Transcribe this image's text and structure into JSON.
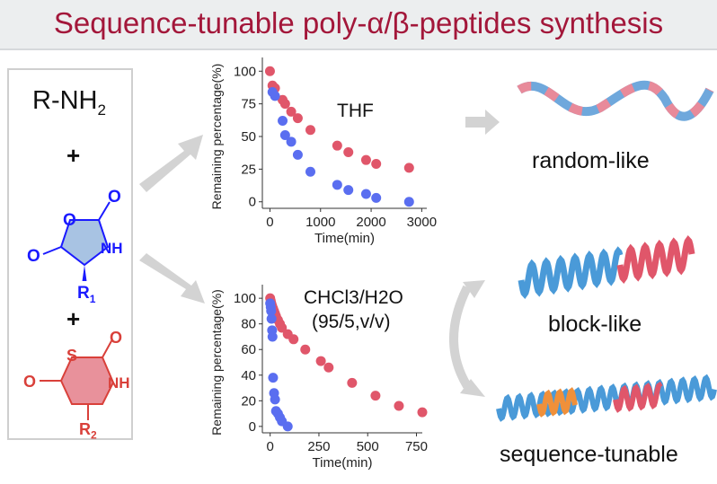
{
  "title": "Sequence-tunable poly-α/β-peptides synthesis",
  "reagents": {
    "amine": "R-NH",
    "amine_sub": "2",
    "plus": "+",
    "nca": {
      "o1": "O",
      "o2": "O",
      "o3": "O",
      "nh": "NH",
      "r": "R",
      "r_sub": "1",
      "color": "#1a1aff"
    },
    "ntca": {
      "s": "S",
      "o1": "O",
      "o2": "O",
      "nh": "NH",
      "r": "R",
      "r_sub": "2",
      "color": "#d9403a"
    }
  },
  "products": {
    "random": "random-like",
    "block": "block-like",
    "tunable": "sequence-tunable"
  },
  "colors": {
    "red": "#e0566a",
    "blue": "#5a6ef0",
    "arrow": "#d3d3d3"
  },
  "chart_data": [
    {
      "type": "scatter",
      "annotation": "THF",
      "xlabel": "Time(min)",
      "ylabel": "Remaining percentage(%)",
      "xlim": [
        -150,
        3100
      ],
      "ylim": [
        -5,
        105
      ],
      "xticks": [
        0,
        1000,
        2000,
        3000
      ],
      "yticks": [
        0,
        25,
        50,
        75,
        100
      ],
      "series": [
        {
          "color": "#e0566a",
          "points": [
            [
              0,
              100
            ],
            [
              50,
              89
            ],
            [
              100,
              87
            ],
            [
              250,
              78
            ],
            [
              300,
              75
            ],
            [
              420,
              69
            ],
            [
              550,
              64
            ],
            [
              800,
              55
            ],
            [
              1330,
              43
            ],
            [
              1550,
              38
            ],
            [
              1900,
              32
            ],
            [
              2100,
              29
            ],
            [
              2750,
              26
            ]
          ]
        },
        {
          "color": "#5a6ef0",
          "points": [
            [
              50,
              84
            ],
            [
              100,
              81
            ],
            [
              250,
              62
            ],
            [
              300,
              51
            ],
            [
              420,
              46
            ],
            [
              550,
              36
            ],
            [
              800,
              23
            ],
            [
              1330,
              13
            ],
            [
              1550,
              9
            ],
            [
              1900,
              6
            ],
            [
              2100,
              3
            ],
            [
              2750,
              0
            ]
          ]
        }
      ]
    },
    {
      "type": "scatter",
      "annotation": "CHCl3/H2O",
      "annotation2": "(95/5,v/v)",
      "xlabel": "Time(min)",
      "ylabel": "Remaining percentage(%)",
      "xlim": [
        -40,
        780
      ],
      "ylim": [
        -5,
        105
      ],
      "xticks": [
        0,
        250,
        500,
        750
      ],
      "yticks": [
        0,
        20,
        40,
        60,
        80,
        100
      ],
      "series": [
        {
          "color": "#e0566a",
          "points": [
            [
              0,
              100
            ],
            [
              3,
              98
            ],
            [
              6,
              96
            ],
            [
              10,
              94
            ],
            [
              15,
              92
            ],
            [
              20,
              90
            ],
            [
              25,
              88
            ],
            [
              30,
              86
            ],
            [
              40,
              83
            ],
            [
              50,
              80
            ],
            [
              60,
              77
            ],
            [
              90,
              72
            ],
            [
              120,
              68
            ],
            [
              180,
              60
            ],
            [
              260,
              51
            ],
            [
              300,
              46
            ],
            [
              420,
              34
            ],
            [
              540,
              24
            ],
            [
              660,
              16
            ],
            [
              780,
              11
            ]
          ]
        },
        {
          "color": "#5a6ef0",
          "points": [
            [
              0,
              96
            ],
            [
              3,
              93
            ],
            [
              5,
              90
            ],
            [
              7,
              84
            ],
            [
              10,
              75
            ],
            [
              12,
              70
            ],
            [
              15,
              38
            ],
            [
              20,
              26
            ],
            [
              25,
              21
            ],
            [
              30,
              12
            ],
            [
              40,
              10
            ],
            [
              50,
              7
            ],
            [
              60,
              4
            ],
            [
              90,
              0
            ]
          ]
        }
      ]
    }
  ]
}
